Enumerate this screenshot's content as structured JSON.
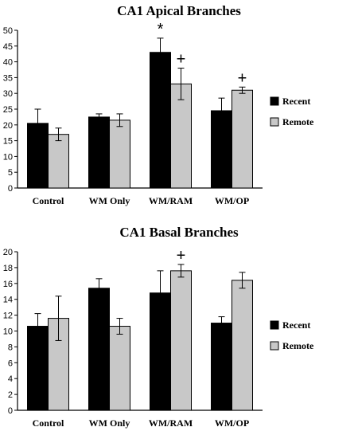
{
  "chart_data": [
    {
      "type": "bar",
      "title": "CA1 Apical Branches",
      "xlabel": "",
      "ylabel": "",
      "categories": [
        "Control",
        "WM Only",
        "WM/RAM",
        "WM/OP"
      ],
      "ylim": [
        0,
        50
      ],
      "yticks": [
        "0",
        "5",
        "10",
        "15",
        "20",
        "25",
        "30",
        "35",
        "40",
        "45",
        "50"
      ],
      "series": [
        {
          "name": "Recent",
          "color": "#000000",
          "values": [
            20.5,
            22.5,
            43,
            24.5
          ],
          "errors": [
            4.5,
            1,
            4.5,
            4
          ]
        },
        {
          "name": "Remote",
          "color": "#c8c8c8",
          "values": [
            17,
            21.5,
            33,
            31
          ],
          "errors": [
            2,
            2,
            5,
            1
          ]
        }
      ],
      "annotations": [
        {
          "text": "*",
          "category": "WM/RAM",
          "series": "Recent"
        },
        {
          "text": "+",
          "category": "WM/RAM",
          "series": "Remote"
        },
        {
          "text": "+",
          "category": "WM/OP",
          "series": "Remote"
        }
      ],
      "legend": "right"
    },
    {
      "type": "bar",
      "title": "CA1 Basal Branches",
      "xlabel": "",
      "ylabel": "",
      "categories": [
        "Control",
        "WM Only",
        "WM/RAM",
        "WM/OP"
      ],
      "ylim": [
        0,
        20
      ],
      "yticks": [
        "0",
        "2",
        "4",
        "6",
        "8",
        "10",
        "12",
        "14",
        "16",
        "18",
        "20"
      ],
      "series": [
        {
          "name": "Recent",
          "color": "#000000",
          "values": [
            10.6,
            15.4,
            14.8,
            11
          ],
          "errors": [
            1.6,
            1.2,
            2.8,
            0.8
          ]
        },
        {
          "name": "Remote",
          "color": "#c8c8c8",
          "values": [
            11.6,
            10.6,
            17.6,
            16.4
          ],
          "errors": [
            2.8,
            1,
            0.8,
            1
          ]
        }
      ],
      "annotations": [
        {
          "text": "+",
          "category": "WM/RAM",
          "series": "Remote"
        }
      ],
      "legend": "right"
    }
  ]
}
